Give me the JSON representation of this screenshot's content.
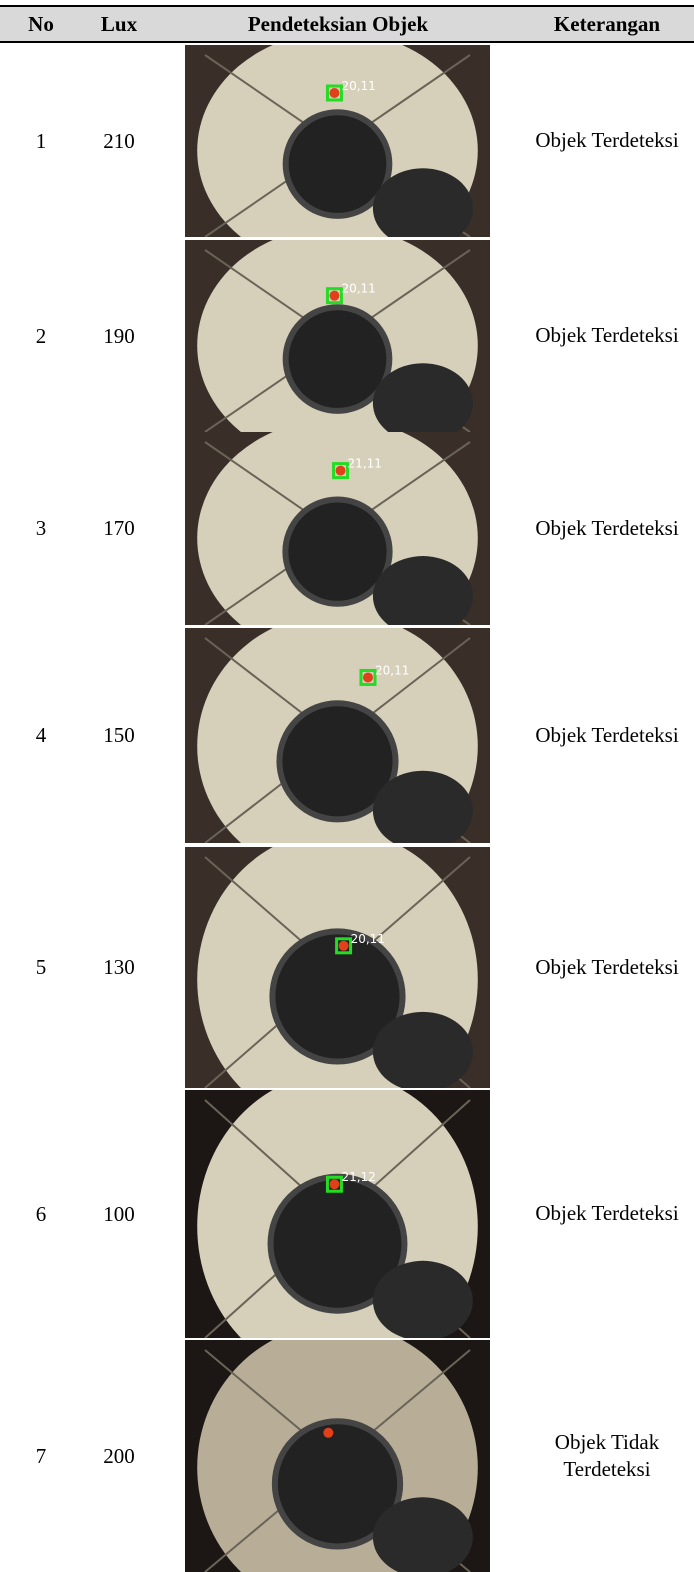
{
  "table": {
    "header": [
      "No",
      "Lux",
      "Pendeteksian Objek",
      "Keterangan"
    ],
    "rows": [
      {
        "no": 1,
        "lux": 210,
        "overlay": "20,11",
        "status": "Objek Terdeteksi"
      },
      {
        "no": 2,
        "lux": 190,
        "overlay": "20,11",
        "status": "Objek Terdeteksi"
      },
      {
        "no": 3,
        "lux": 170,
        "overlay": "21,11",
        "status": "Objek Terdeteksi"
      },
      {
        "no": 4,
        "lux": 150,
        "overlay": "20,11",
        "status": "Objek Terdeteksi"
      },
      {
        "no": 5,
        "lux": 130,
        "overlay": "20,11",
        "status": "Objek Terdeteksi"
      },
      {
        "no": 6,
        "lux": 100,
        "overlay": "21,12",
        "status": "Objek Terdeteksi"
      },
      {
        "no": 7,
        "lux": 200,
        "status": "Objek Tidak Terdeteksi"
      }
    ]
  }
}
